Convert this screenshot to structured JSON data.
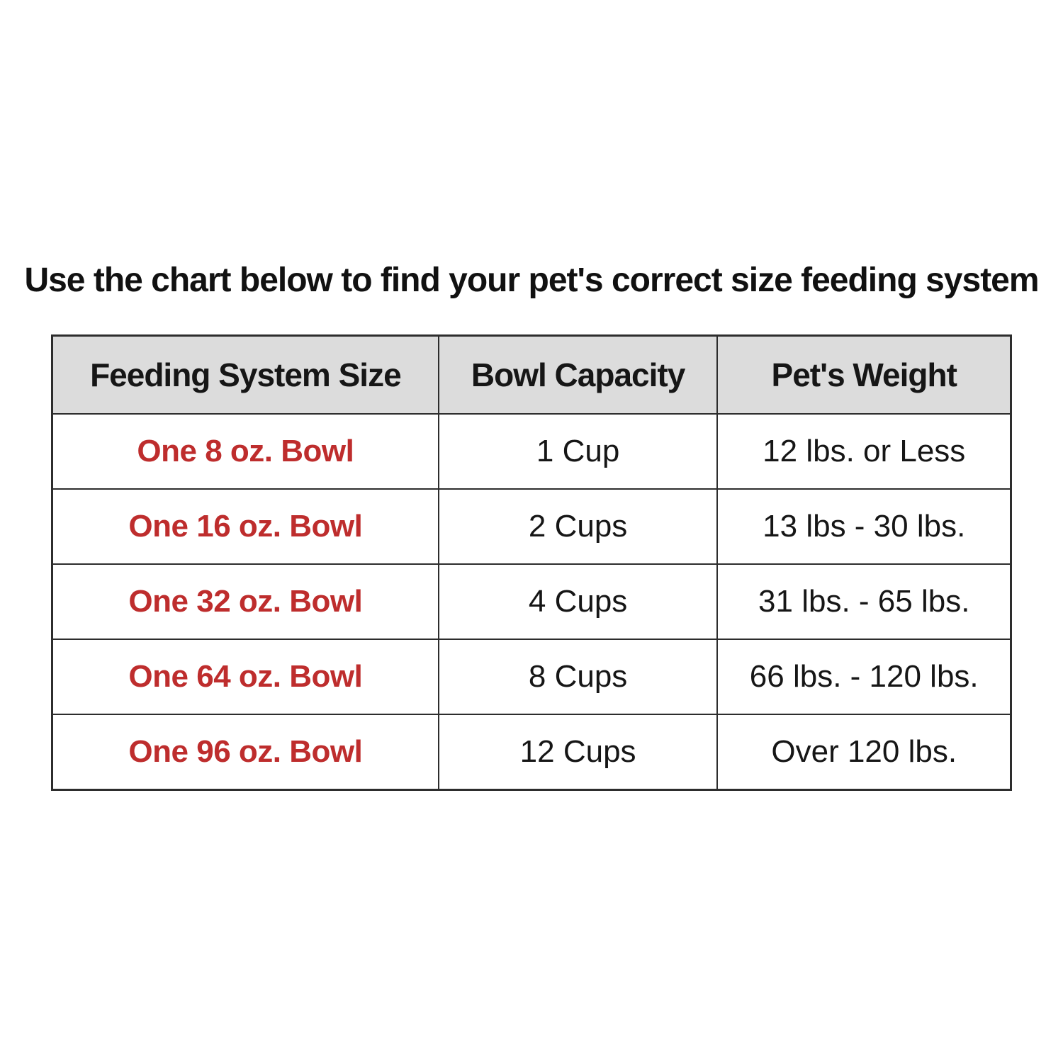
{
  "page": {
    "title": "Use the chart below to find your pet's correct size feeding system"
  },
  "table": {
    "headers": [
      "Feeding System Size",
      "Bowl Capacity",
      "Pet's Weight"
    ],
    "rows": [
      {
        "size": "One 8 oz. Bowl",
        "capacity": "1 Cup",
        "weight": "12 lbs. or Less"
      },
      {
        "size": "One 16 oz. Bowl",
        "capacity": "2 Cups",
        "weight": "13 lbs - 30 lbs."
      },
      {
        "size": "One 32 oz. Bowl",
        "capacity": "4 Cups",
        "weight": "31 lbs. - 65 lbs."
      },
      {
        "size": "One 64 oz. Bowl",
        "capacity": "8 Cups",
        "weight": "66 lbs. - 120 lbs."
      },
      {
        "size": "One 96 oz. Bowl",
        "capacity": "12 Cups",
        "weight": "Over 120 lbs."
      }
    ],
    "colors": {
      "size_text": "#be2d2d",
      "header_background": "#dcdcdc",
      "border": "#2d2d2d",
      "body_text": "#161616"
    }
  }
}
